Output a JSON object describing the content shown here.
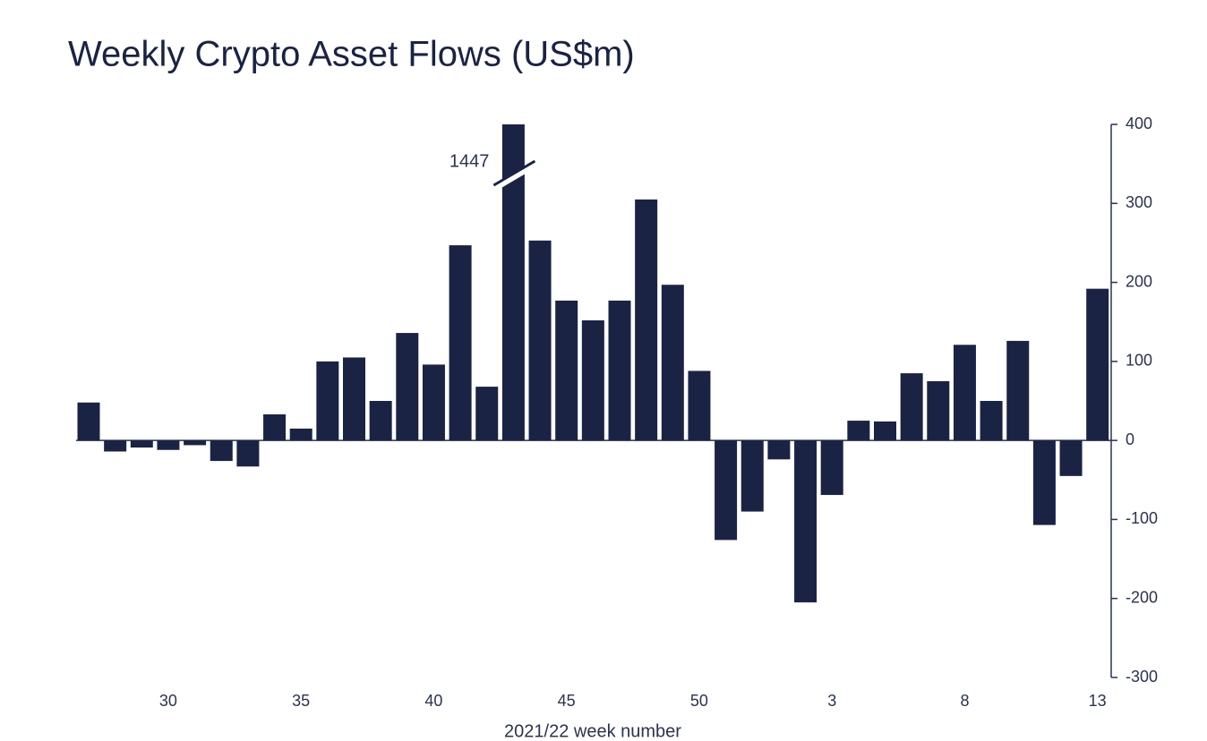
{
  "chart_data": {
    "type": "bar",
    "title": "Weekly Crypto Asset Flows (US$m)",
    "x_label": "2021/22 week number",
    "categories": [
      null,
      null,
      null,
      "30",
      null,
      null,
      null,
      null,
      "35",
      null,
      null,
      null,
      null,
      "40",
      null,
      null,
      null,
      null,
      "45",
      null,
      null,
      null,
      null,
      "50",
      null,
      null,
      null,
      null,
      "3",
      null,
      null,
      null,
      null,
      "8",
      null,
      null,
      null,
      null,
      "13"
    ],
    "values": [
      48,
      -14,
      -9,
      -12,
      -6,
      -26,
      -33,
      33,
      15,
      100,
      105,
      50,
      136,
      96,
      247,
      68,
      1447,
      253,
      177,
      152,
      177,
      305,
      197,
      88,
      -126,
      -90,
      -24,
      -205,
      -69,
      25,
      24,
      85,
      75,
      121,
      50,
      126,
      -107,
      -45,
      192
    ],
    "color": "#1a2344",
    "ylim": [
      -300,
      400
    ],
    "yticks": [
      -300,
      -200,
      -100,
      0,
      100,
      200,
      300,
      400
    ],
    "y_axis_side": "right"
  }
}
